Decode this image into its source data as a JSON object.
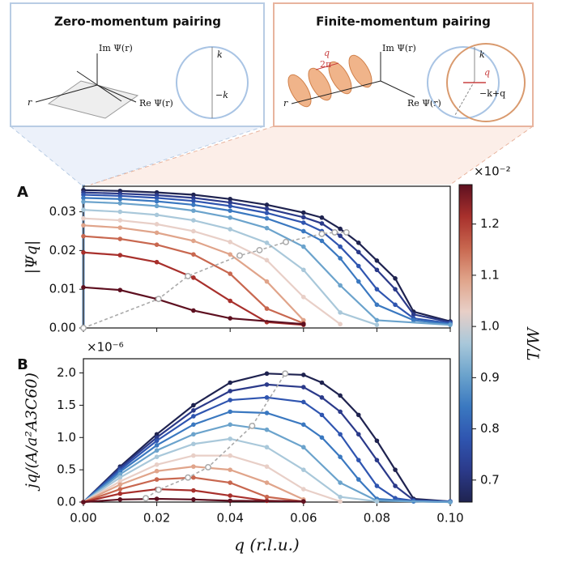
{
  "diagram": {
    "left_title": "Zero-momentum pairing",
    "right_title": "Finite-momentum pairing",
    "left_im": "Im Ψ(r)",
    "left_re": "Re Ψ(r)",
    "left_r": "r",
    "left_k": "k",
    "left_mk": "−k",
    "right_q": "q",
    "right_2pi": "2π",
    "right_im": "Im Ψ(r)",
    "right_re": "Re Ψ(r)",
    "right_r": "r",
    "right_k": "k",
    "right_qvec": "q",
    "right_mkq": "−k+q"
  },
  "chart_data": [
    {
      "type": "line",
      "title": "A",
      "ylabel": "|Ψq|",
      "xlim": [
        0,
        0.1
      ],
      "ylim": [
        0,
        0.0366
      ],
      "yticks": [
        {
          "value": 0,
          "label": "0.00"
        },
        0.01,
        0.02,
        0.03
      ],
      "series": [
        {
          "color": "#1f2350",
          "x": [
            0,
            0.01,
            0.02,
            0.03,
            0.04,
            0.05,
            0.06,
            0.065,
            0.07,
            0.075,
            0.08,
            0.085,
            0.09,
            0.1
          ],
          "values": [
            0.0356,
            0.0354,
            0.035,
            0.0344,
            0.0333,
            0.0318,
            0.0298,
            0.0285,
            0.0256,
            0.022,
            0.0174,
            0.0128,
            0.0042,
            0.0017
          ]
        },
        {
          "color": "#2b3a8a",
          "x": [
            0,
            0.01,
            0.02,
            0.03,
            0.04,
            0.05,
            0.06,
            0.065,
            0.07,
            0.075,
            0.08,
            0.085,
            0.09,
            0.1
          ],
          "values": [
            0.035,
            0.0347,
            0.0343,
            0.0336,
            0.0324,
            0.0308,
            0.0286,
            0.027,
            0.0238,
            0.0196,
            0.015,
            0.01,
            0.0035,
            0.0015
          ]
        },
        {
          "color": "#2f55b0",
          "x": [
            0,
            0.01,
            0.02,
            0.03,
            0.04,
            0.05,
            0.06,
            0.065,
            0.07,
            0.075,
            0.08,
            0.085,
            0.09,
            0.1
          ],
          "values": [
            0.0344,
            0.0341,
            0.0336,
            0.0328,
            0.0315,
            0.0297,
            0.0272,
            0.025,
            0.021,
            0.016,
            0.01,
            0.006,
            0.0025,
            0.0012
          ]
        },
        {
          "color": "#3a78c0",
          "x": [
            0,
            0.01,
            0.02,
            0.03,
            0.04,
            0.05,
            0.06,
            0.065,
            0.07,
            0.075,
            0.08,
            0.09,
            0.1
          ],
          "values": [
            0.0336,
            0.0333,
            0.0327,
            0.0318,
            0.0303,
            0.0283,
            0.025,
            0.0225,
            0.018,
            0.012,
            0.006,
            0.002,
            0.001
          ]
        },
        {
          "color": "#6ba3cc",
          "x": [
            0,
            0.01,
            0.02,
            0.03,
            0.04,
            0.05,
            0.06,
            0.07,
            0.08,
            0.1
          ],
          "values": [
            0.0326,
            0.0322,
            0.0315,
            0.0303,
            0.0285,
            0.0258,
            0.021,
            0.011,
            0.002,
            0.0008
          ]
        },
        {
          "color": "#a9c8da",
          "x": [
            0,
            0.01,
            0.02,
            0.03,
            0.04,
            0.05,
            0.06,
            0.07,
            0.08
          ],
          "values": [
            0.0305,
            0.03,
            0.0292,
            0.0278,
            0.0255,
            0.022,
            0.015,
            0.004,
            0.0008
          ]
        },
        {
          "color": "#e8cfc7",
          "x": [
            0,
            0.01,
            0.02,
            0.03,
            0.04,
            0.05,
            0.06,
            0.07
          ],
          "values": [
            0.0283,
            0.0278,
            0.0268,
            0.025,
            0.0222,
            0.0175,
            0.008,
            0.001
          ]
        },
        {
          "color": "#e0a48a",
          "x": [
            0,
            0.01,
            0.02,
            0.03,
            0.04,
            0.05,
            0.06
          ],
          "values": [
            0.0265,
            0.0259,
            0.0246,
            0.0225,
            0.019,
            0.012,
            0.002
          ]
        },
        {
          "color": "#c8674f",
          "x": [
            0,
            0.01,
            0.02,
            0.03,
            0.04,
            0.05,
            0.06
          ],
          "values": [
            0.0237,
            0.023,
            0.0215,
            0.019,
            0.014,
            0.005,
            0.0012
          ]
        },
        {
          "color": "#a8302c",
          "x": [
            0,
            0.01,
            0.02,
            0.03,
            0.04,
            0.05,
            0.06
          ],
          "values": [
            0.0195,
            0.0188,
            0.017,
            0.013,
            0.007,
            0.0015,
            0.0008
          ]
        },
        {
          "color": "#5e1020",
          "x": [
            0,
            0.01,
            0.02,
            0.03,
            0.04,
            0.06
          ],
          "values": [
            0.0105,
            0.0098,
            0.0075,
            0.0045,
            0.0025,
            0.001
          ]
        }
      ],
      "peak_curve": {
        "color": "#aaaaaa",
        "dash": "4 3",
        "x": [
          0,
          0.0205,
          0.0285,
          0.0426,
          0.048,
          0.0552,
          0.065,
          0.0685,
          0.0717
        ],
        "values": [
          0,
          0.0075,
          0.0134,
          0.0187,
          0.0201,
          0.0222,
          0.0243,
          0.0247,
          0.0247
        ]
      }
    },
    {
      "type": "line",
      "title": "B",
      "ylabel": "jq/(A/a²A3C60)",
      "scale_label": "×10⁻⁶",
      "xlabel": "q (r.l.u.)",
      "xlim": [
        0,
        0.1
      ],
      "ylim": [
        0,
        2.22
      ],
      "xticks": [
        {
          "value": 0,
          "label": "0.00"
        },
        0.02,
        0.04,
        0.06,
        0.08,
        {
          "value": 0.1,
          "label": "0.10"
        }
      ],
      "yticks": [
        {
          "value": 0,
          "label": "0.0"
        },
        0.5,
        {
          "value": 1,
          "label": "1.0"
        },
        1.5,
        {
          "value": 2,
          "label": "2.0"
        }
      ],
      "series": [
        {
          "color": "#1f2350",
          "x": [
            0,
            0.01,
            0.02,
            0.03,
            0.04,
            0.05,
            0.06,
            0.065,
            0.07,
            0.075,
            0.08,
            0.085,
            0.09,
            0.1
          ],
          "values": [
            0,
            0.55,
            1.05,
            1.5,
            1.85,
            1.99,
            1.97,
            1.85,
            1.65,
            1.35,
            0.95,
            0.5,
            0.05,
            0.01
          ]
        },
        {
          "color": "#2b3a8a",
          "x": [
            0,
            0.01,
            0.02,
            0.03,
            0.04,
            0.05,
            0.06,
            0.065,
            0.07,
            0.075,
            0.08,
            0.085,
            0.09,
            0.1
          ],
          "values": [
            0,
            0.53,
            1,
            1.42,
            1.72,
            1.82,
            1.78,
            1.62,
            1.4,
            1.05,
            0.65,
            0.25,
            0.03,
            0.01
          ]
        },
        {
          "color": "#2f55b0",
          "x": [
            0,
            0.01,
            0.02,
            0.03,
            0.04,
            0.05,
            0.06,
            0.065,
            0.07,
            0.075,
            0.08,
            0.085,
            0.09,
            0.1
          ],
          "values": [
            0,
            0.5,
            0.95,
            1.33,
            1.58,
            1.62,
            1.55,
            1.35,
            1.05,
            0.65,
            0.25,
            0.06,
            0.02,
            0.01
          ]
        },
        {
          "color": "#3a78c0",
          "x": [
            0,
            0.01,
            0.02,
            0.03,
            0.04,
            0.05,
            0.06,
            0.065,
            0.07,
            0.075,
            0.08,
            0.09,
            0.1
          ],
          "values": [
            0,
            0.47,
            0.88,
            1.2,
            1.4,
            1.38,
            1.2,
            1,
            0.7,
            0.35,
            0.05,
            0.01,
            0
          ]
        },
        {
          "color": "#6ba3cc",
          "x": [
            0,
            0.01,
            0.02,
            0.03,
            0.04,
            0.05,
            0.06,
            0.07,
            0.08,
            0.1
          ],
          "values": [
            0,
            0.43,
            0.8,
            1.05,
            1.2,
            1.12,
            0.85,
            0.3,
            0.02,
            0
          ]
        },
        {
          "color": "#a9c8da",
          "x": [
            0,
            0.01,
            0.02,
            0.03,
            0.04,
            0.05,
            0.06,
            0.07,
            0.08
          ],
          "values": [
            0,
            0.38,
            0.7,
            0.9,
            0.98,
            0.85,
            0.5,
            0.08,
            0.01
          ]
        },
        {
          "color": "#e8cfc7",
          "x": [
            0,
            0.01,
            0.02,
            0.03,
            0.04,
            0.05,
            0.06,
            0.07
          ],
          "values": [
            0,
            0.32,
            0.58,
            0.72,
            0.72,
            0.55,
            0.2,
            0.01
          ]
        },
        {
          "color": "#e0a48a",
          "x": [
            0,
            0.01,
            0.02,
            0.03,
            0.04,
            0.05,
            0.06
          ],
          "values": [
            0,
            0.27,
            0.48,
            0.55,
            0.5,
            0.3,
            0.04
          ]
        },
        {
          "color": "#c8674f",
          "x": [
            0,
            0.01,
            0.02,
            0.03,
            0.04,
            0.05,
            0.06
          ],
          "values": [
            0,
            0.2,
            0.35,
            0.38,
            0.3,
            0.08,
            0.01
          ]
        },
        {
          "color": "#a8302c",
          "x": [
            0,
            0.01,
            0.02,
            0.03,
            0.04,
            0.05,
            0.06
          ],
          "values": [
            0,
            0.13,
            0.2,
            0.18,
            0.1,
            0.02,
            0.01
          ]
        },
        {
          "color": "#5e1020",
          "x": [
            0,
            0.01,
            0.02,
            0.03,
            0.04,
            0.06
          ],
          "values": [
            0,
            0.04,
            0.05,
            0.04,
            0.02,
            0.01
          ]
        }
      ],
      "peak_curve": {
        "color": "#aaaaaa",
        "dash": "4 3",
        "x": [
          0.017,
          0.0205,
          0.0285,
          0.034,
          0.046,
          0.055
        ],
        "values": [
          0.06,
          0.19,
          0.38,
          0.54,
          1.18,
          1.99
        ]
      }
    }
  ],
  "colorbar": {
    "label": "T/W",
    "scale_label": "×10⁻²",
    "clim": [
      0.657,
      1.277
    ],
    "ticks": [
      0.7,
      0.8,
      0.9,
      {
        "value": 1,
        "label": "1.0"
      },
      1.1,
      1.2
    ]
  }
}
